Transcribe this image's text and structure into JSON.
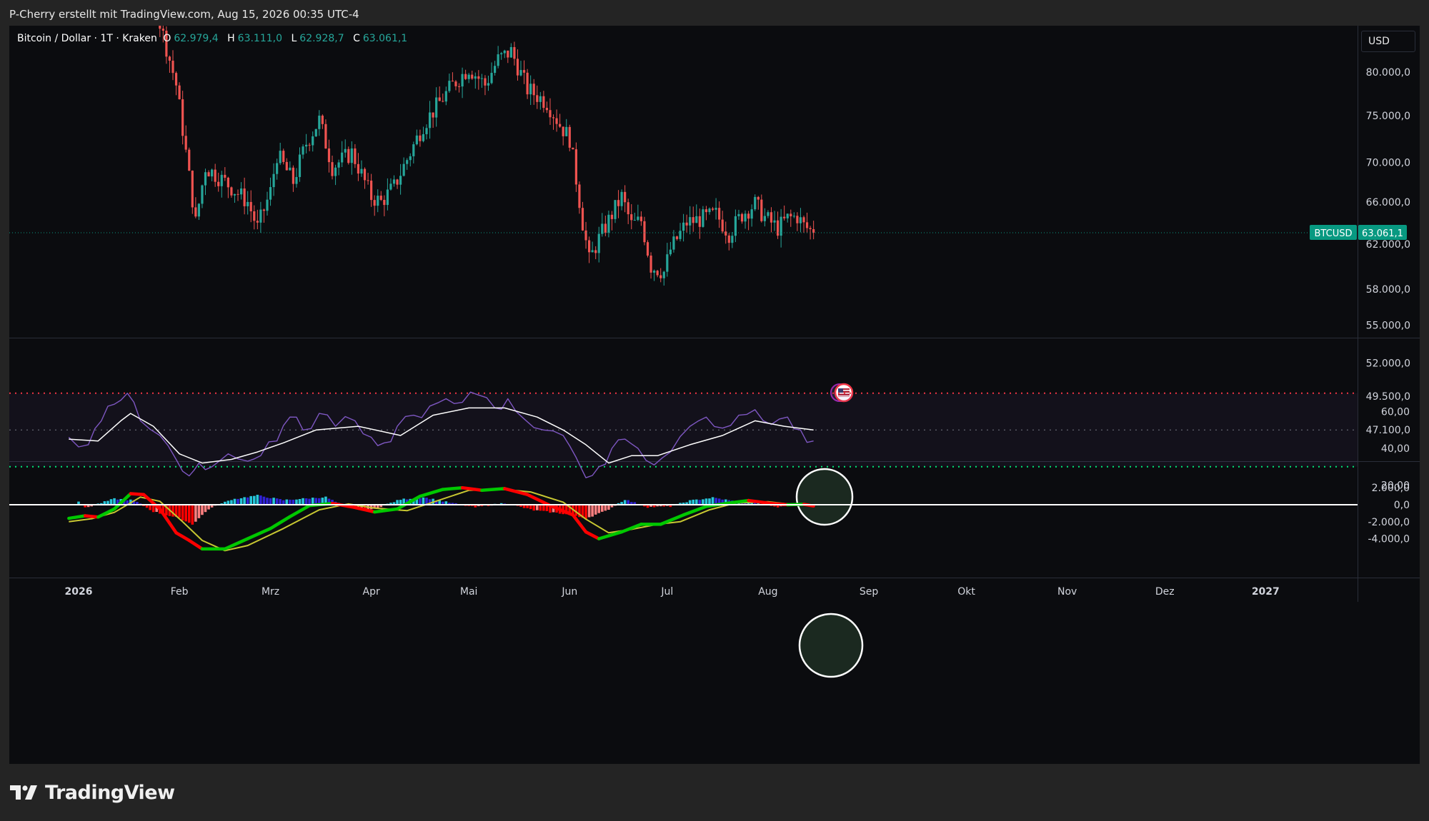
{
  "header": {
    "credit": "P-Cherry erstellt mit TradingView.com, Aug 15, 2026 00:35 UTC-4"
  },
  "footer": {
    "brand": "TradingView"
  },
  "legend": {
    "symbol": "Bitcoin / Dollar · 1T · Kraken",
    "o_label": "O",
    "o_value": "62.979,4",
    "h_label": "H",
    "h_value": "63.111,0",
    "l_label": "L",
    "l_value": "62.928,7",
    "c_label": "C",
    "c_value": "63.061,1"
  },
  "scale_currency": "USD",
  "price_tag": {
    "symbol": "BTCUSD",
    "value": "63.061,1",
    "color": "#089981"
  },
  "colors": {
    "up": "#26a69a",
    "down": "#ef5350",
    "rsi_line": "#7e57c2",
    "rsi_ma": "#ffffff",
    "rsi_upper": "#f23645",
    "rsi_lower": "#00e676",
    "macd_line": "#00c800",
    "macd_signal": "#c8c832",
    "hist_pos_strong": "#26c6da",
    "hist_pos_weak": "#2f22d6",
    "hist_neg_strong": "#ff0000",
    "hist_neg_weak": "#ff7f7f"
  },
  "icons": [
    "us-flag-icon",
    "event-marker-icon",
    "tradingview-logo-icon"
  ],
  "chart_data": [
    {
      "type": "candlestick",
      "title": "Bitcoin / Dollar · 1T · Kraken",
      "x_start": "2025-12-29",
      "x_end": "2026-08-15",
      "y_ticks": [
        "80.000,0",
        "75.000,0",
        "70.000,0",
        "66.000,0",
        "62.000,0",
        "58.000,0",
        "55.000,0",
        "52.000,0",
        "49.500,0",
        "47.100,0"
      ],
      "y_scale": "log",
      "close_path": [
        [
          "2025-12-29",
          88500
        ],
        [
          "2026-01-08",
          91000
        ],
        [
          "2026-01-15",
          95500
        ],
        [
          "2026-01-24",
          89000
        ],
        [
          "2026-01-31",
          78500
        ],
        [
          "2026-02-04",
          68500
        ],
        [
          "2026-02-06",
          64000
        ],
        [
          "2026-02-09",
          69500
        ],
        [
          "2026-02-15",
          68000
        ],
        [
          "2026-02-22",
          66000
        ],
        [
          "2026-02-25",
          63500
        ],
        [
          "2026-03-01",
          67000
        ],
        [
          "2026-03-03",
          70800
        ],
        [
          "2026-03-08",
          68000
        ],
        [
          "2026-03-12",
          72000
        ],
        [
          "2026-03-16",
          74500
        ],
        [
          "2026-03-20",
          69500
        ],
        [
          "2026-03-26",
          71000
        ],
        [
          "2026-04-01",
          66500
        ],
        [
          "2026-04-04",
          66000
        ],
        [
          "2026-04-08",
          67500
        ],
        [
          "2026-04-13",
          71000
        ],
        [
          "2026-04-17",
          74000
        ],
        [
          "2026-04-22",
          76500
        ],
        [
          "2026-04-26",
          78500
        ],
        [
          "2026-05-01",
          80500
        ],
        [
          "2026-05-06",
          78500
        ],
        [
          "2026-05-10",
          81500
        ],
        [
          "2026-05-14",
          82500
        ],
        [
          "2026-05-19",
          78000
        ],
        [
          "2026-05-25",
          76500
        ],
        [
          "2026-05-29",
          74000
        ],
        [
          "2026-06-01",
          72500
        ],
        [
          "2026-06-05",
          64000
        ],
        [
          "2026-06-07",
          60500
        ],
        [
          "2026-06-10",
          62500
        ],
        [
          "2026-06-14",
          64800
        ],
        [
          "2026-06-17",
          66500
        ],
        [
          "2026-06-20",
          63800
        ],
        [
          "2026-06-23",
          64200
        ],
        [
          "2026-06-26",
          60000
        ],
        [
          "2026-06-30",
          59500
        ],
        [
          "2026-07-02",
          61500
        ],
        [
          "2026-07-07",
          64000
        ],
        [
          "2026-07-13",
          64500
        ],
        [
          "2026-07-16",
          64800
        ],
        [
          "2026-07-20",
          63000
        ],
        [
          "2026-07-24",
          64800
        ],
        [
          "2026-07-28",
          65800
        ],
        [
          "2026-07-31",
          64500
        ],
        [
          "2026-08-04",
          63500
        ],
        [
          "2026-08-07",
          64400
        ],
        [
          "2026-08-10",
          64600
        ],
        [
          "2026-08-12",
          63700
        ],
        [
          "2026-08-15",
          63061.1
        ]
      ],
      "last": 63061.1
    },
    {
      "type": "line",
      "title": "RSI",
      "y_ticks": [
        "60,00",
        "40,00",
        "20,00"
      ],
      "levels": {
        "upper": 70,
        "middle": 50,
        "lower": 30
      },
      "series": [
        {
          "role": "rsi",
          "points": [
            [
              "2025-12-29",
              46
            ],
            [
              "2026-01-04",
              42
            ],
            [
              "2026-01-08",
              55
            ],
            [
              "2026-01-12",
              64
            ],
            [
              "2026-01-16",
              70
            ],
            [
              "2026-01-20",
              55
            ],
            [
              "2026-01-26",
              47
            ],
            [
              "2026-01-31",
              34
            ],
            [
              "2026-02-04",
              25
            ],
            [
              "2026-02-07",
              32
            ],
            [
              "2026-02-11",
              30
            ],
            [
              "2026-02-16",
              37
            ],
            [
              "2026-02-22",
              33
            ],
            [
              "2026-02-26",
              36
            ],
            [
              "2026-03-03",
              44
            ],
            [
              "2026-03-07",
              57
            ],
            [
              "2026-03-11",
              50
            ],
            [
              "2026-03-16",
              59
            ],
            [
              "2026-03-21",
              52
            ],
            [
              "2026-03-27",
              55
            ],
            [
              "2026-04-01",
              46
            ],
            [
              "2026-04-05",
              43
            ],
            [
              "2026-04-09",
              52
            ],
            [
              "2026-04-14",
              58
            ],
            [
              "2026-04-19",
              63
            ],
            [
              "2026-04-24",
              67
            ],
            [
              "2026-04-29",
              65
            ],
            [
              "2026-05-04",
              69
            ],
            [
              "2026-05-09",
              62
            ],
            [
              "2026-05-13",
              67
            ],
            [
              "2026-05-18",
              56
            ],
            [
              "2026-05-24",
              50
            ],
            [
              "2026-05-30",
              47
            ],
            [
              "2026-06-03",
              35
            ],
            [
              "2026-06-06",
              24
            ],
            [
              "2026-06-10",
              30
            ],
            [
              "2026-06-14",
              40
            ],
            [
              "2026-06-18",
              45
            ],
            [
              "2026-06-22",
              40
            ],
            [
              "2026-06-27",
              31
            ],
            [
              "2026-07-02",
              38
            ],
            [
              "2026-07-08",
              52
            ],
            [
              "2026-07-13",
              57
            ],
            [
              "2026-07-18",
              51
            ],
            [
              "2026-07-23",
              58
            ],
            [
              "2026-07-28",
              61
            ],
            [
              "2026-08-02",
              53
            ],
            [
              "2026-08-07",
              57
            ],
            [
              "2026-08-11",
              50
            ],
            [
              "2026-08-15",
              44
            ]
          ]
        },
        {
          "role": "rsi_ma",
          "points": [
            [
              "2025-12-29",
              45
            ],
            [
              "2026-01-07",
              44
            ],
            [
              "2026-01-14",
              55
            ],
            [
              "2026-01-17",
              59
            ],
            [
              "2026-01-24",
              52
            ],
            [
              "2026-02-01",
              37
            ],
            [
              "2026-02-08",
              32
            ],
            [
              "2026-02-17",
              34
            ],
            [
              "2026-02-25",
              38
            ],
            [
              "2026-03-05",
              43
            ],
            [
              "2026-03-15",
              50
            ],
            [
              "2026-03-28",
              52
            ],
            [
              "2026-04-10",
              47
            ],
            [
              "2026-04-20",
              58
            ],
            [
              "2026-05-01",
              62
            ],
            [
              "2026-05-12",
              62
            ],
            [
              "2026-05-22",
              57
            ],
            [
              "2026-05-30",
              50
            ],
            [
              "2026-06-06",
              42
            ],
            [
              "2026-06-13",
              32
            ],
            [
              "2026-06-20",
              36
            ],
            [
              "2026-06-28",
              36
            ],
            [
              "2026-07-08",
              42
            ],
            [
              "2026-07-18",
              47
            ],
            [
              "2026-07-28",
              55
            ],
            [
              "2026-08-06",
              52
            ],
            [
              "2026-08-15",
              50
            ]
          ]
        }
      ]
    },
    {
      "type": "line",
      "title": "MACD",
      "y_ticks": [
        "2.000,0",
        "0,0",
        "-2.000,0",
        "-4.000,0"
      ],
      "series": [
        {
          "role": "macd",
          "points": [
            [
              "2025-12-29",
              -1600
            ],
            [
              "2026-01-03",
              -1300
            ],
            [
              "2026-01-07",
              -1450
            ],
            [
              "2026-01-12",
              -500
            ],
            [
              "2026-01-17",
              1300
            ],
            [
              "2026-01-21",
              1200
            ],
            [
              "2026-01-26",
              -500
            ],
            [
              "2026-01-31",
              -3300
            ],
            [
              "2026-02-04",
              -4200
            ],
            [
              "2026-02-08",
              -5200
            ],
            [
              "2026-02-15",
              -5200
            ],
            [
              "2026-02-22",
              -4000
            ],
            [
              "2026-03-01",
              -2800
            ],
            [
              "2026-03-07",
              -1400
            ],
            [
              "2026-03-13",
              -100
            ],
            [
              "2026-03-20",
              150
            ],
            [
              "2026-03-26",
              -250
            ],
            [
              "2026-04-02",
              -850
            ],
            [
              "2026-04-09",
              -500
            ],
            [
              "2026-04-16",
              1000
            ],
            [
              "2026-04-23",
              1800
            ],
            [
              "2026-04-29",
              2000
            ],
            [
              "2026-05-05",
              1700
            ],
            [
              "2026-05-12",
              1900
            ],
            [
              "2026-05-19",
              1200
            ],
            [
              "2026-05-26",
              -100
            ],
            [
              "2026-06-02",
              -1200
            ],
            [
              "2026-06-06",
              -3200
            ],
            [
              "2026-06-10",
              -4000
            ],
            [
              "2026-06-17",
              -3200
            ],
            [
              "2026-06-23",
              -2300
            ],
            [
              "2026-06-29",
              -2300
            ],
            [
              "2026-07-06",
              -1200
            ],
            [
              "2026-07-13",
              -200
            ],
            [
              "2026-07-20",
              200
            ],
            [
              "2026-07-26",
              500
            ],
            [
              "2026-08-02",
              150
            ],
            [
              "2026-08-07",
              0
            ],
            [
              "2026-08-12",
              50
            ],
            [
              "2026-08-15",
              -150
            ]
          ]
        },
        {
          "role": "signal",
          "points": [
            [
              "2025-12-29",
              -2000
            ],
            [
              "2026-01-05",
              -1650
            ],
            [
              "2026-01-12",
              -900
            ],
            [
              "2026-01-20",
              900
            ],
            [
              "2026-01-26",
              400
            ],
            [
              "2026-02-02",
              -2000
            ],
            [
              "2026-02-08",
              -4200
            ],
            [
              "2026-02-15",
              -5400
            ],
            [
              "2026-02-22",
              -4800
            ],
            [
              "2026-03-05",
              -2800
            ],
            [
              "2026-03-16",
              -600
            ],
            [
              "2026-03-25",
              100
            ],
            [
              "2026-04-02",
              -400
            ],
            [
              "2026-04-12",
              -700
            ],
            [
              "2026-04-20",
              300
            ],
            [
              "2026-05-01",
              1700
            ],
            [
              "2026-05-12",
              1800
            ],
            [
              "2026-05-20",
              1500
            ],
            [
              "2026-05-30",
              300
            ],
            [
              "2026-06-06",
              -1700
            ],
            [
              "2026-06-13",
              -3300
            ],
            [
              "2026-06-20",
              -2900
            ],
            [
              "2026-06-28",
              -2300
            ],
            [
              "2026-07-05",
              -2000
            ],
            [
              "2026-07-14",
              -600
            ],
            [
              "2026-07-22",
              200
            ],
            [
              "2026-08-01",
              350
            ],
            [
              "2026-08-08",
              50
            ],
            [
              "2026-08-15",
              -50
            ]
          ]
        }
      ],
      "histogram": [
        [
          "2026-01-01",
          420
        ],
        [
          "2026-01-03",
          -380
        ],
        [
          "2026-01-12",
          700
        ],
        [
          "2026-01-18",
          520
        ],
        [
          "2026-01-24",
          -800
        ],
        [
          "2026-02-01",
          -1600
        ],
        [
          "2026-02-05",
          -2300
        ],
        [
          "2026-02-10",
          -500
        ],
        [
          "2026-02-17",
          620
        ],
        [
          "2026-02-25",
          1100
        ],
        [
          "2026-03-05",
          550
        ],
        [
          "2026-03-18",
          900
        ],
        [
          "2026-03-25",
          -400
        ],
        [
          "2026-04-01",
          -600
        ],
        [
          "2026-04-10",
          620
        ],
        [
          "2026-04-17",
          880
        ],
        [
          "2026-04-25",
          250
        ],
        [
          "2026-05-03",
          -300
        ],
        [
          "2026-05-12",
          200
        ],
        [
          "2026-05-21",
          -650
        ],
        [
          "2026-05-30",
          -1050
        ],
        [
          "2026-06-06",
          -1600
        ],
        [
          "2026-06-12",
          -750
        ],
        [
          "2026-06-18",
          620
        ],
        [
          "2026-06-25",
          -280
        ],
        [
          "2026-07-02",
          -200
        ],
        [
          "2026-07-08",
          480
        ],
        [
          "2026-07-15",
          830
        ],
        [
          "2026-07-22",
          400
        ],
        [
          "2026-07-28",
          300
        ],
        [
          "2026-08-04",
          -300
        ],
        [
          "2026-08-10",
          80
        ],
        [
          "2026-08-15",
          -200
        ]
      ]
    }
  ],
  "time_axis": {
    "labels": [
      "2026",
      "Feb",
      "Mrz",
      "Apr",
      "Mai",
      "Jun",
      "Jul",
      "Aug",
      "Sep",
      "Okt",
      "Nov",
      "Dez",
      "2027"
    ],
    "bold": [
      "2026",
      "2027"
    ]
  }
}
